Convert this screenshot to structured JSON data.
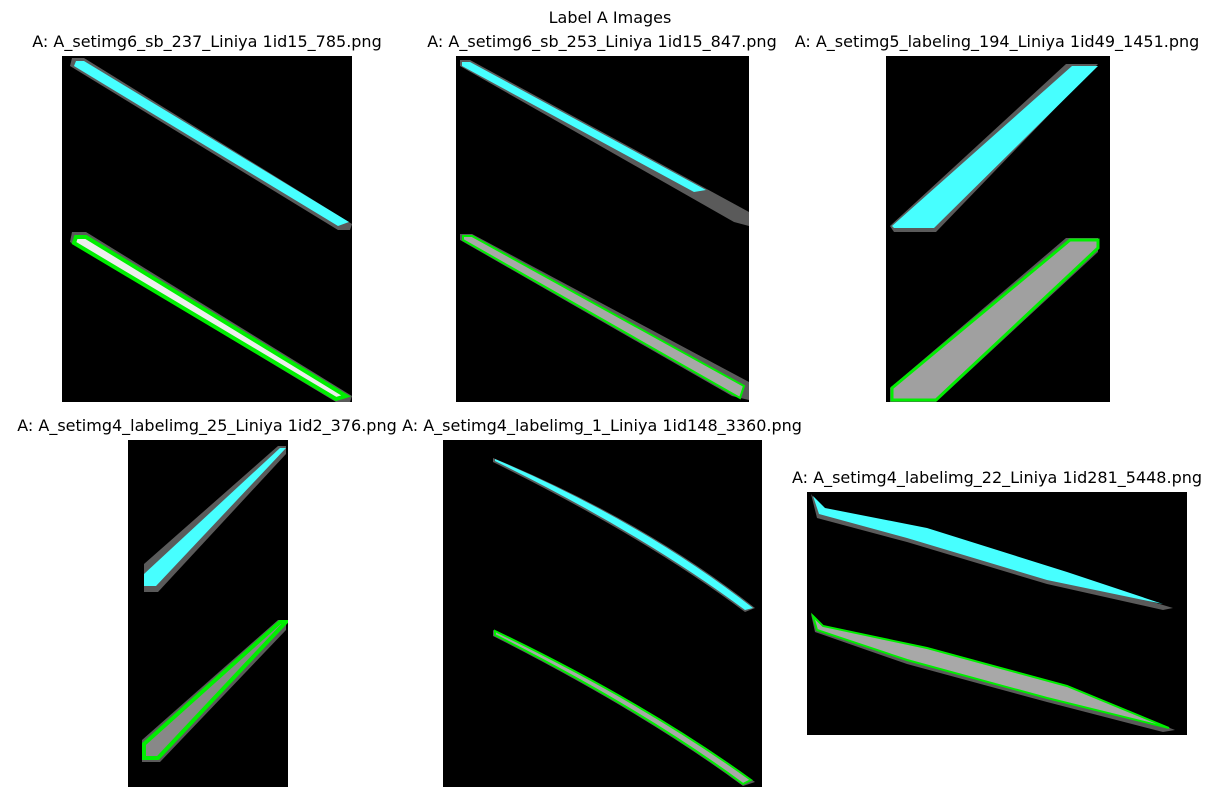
{
  "figure": {
    "title": "Label A Images"
  },
  "panels": [
    {
      "title": "A: A_setimg6_sb_237_Liniya 1id15_785.png"
    },
    {
      "title": "A: A_setimg6_sb_253_Liniya 1id15_847.png"
    },
    {
      "title": "A: A_setimg5_labeling_194_Liniya 1id49_1451.png"
    },
    {
      "title": "A: A_setimg4_labelimg_25_Liniya 1id2_376.png"
    },
    {
      "title": "A: A_setimg4_labelimg_1_Liniya 1id148_3360.png"
    },
    {
      "title": "A: A_setimg4_labelimg_22_Liniya 1id281_5448.png"
    }
  ],
  "colors": {
    "mask": "#47ffff",
    "contour": "#00ee00",
    "halo": "#5a5a5a",
    "line_fill": "#a8a8a8",
    "background": "#000000"
  }
}
